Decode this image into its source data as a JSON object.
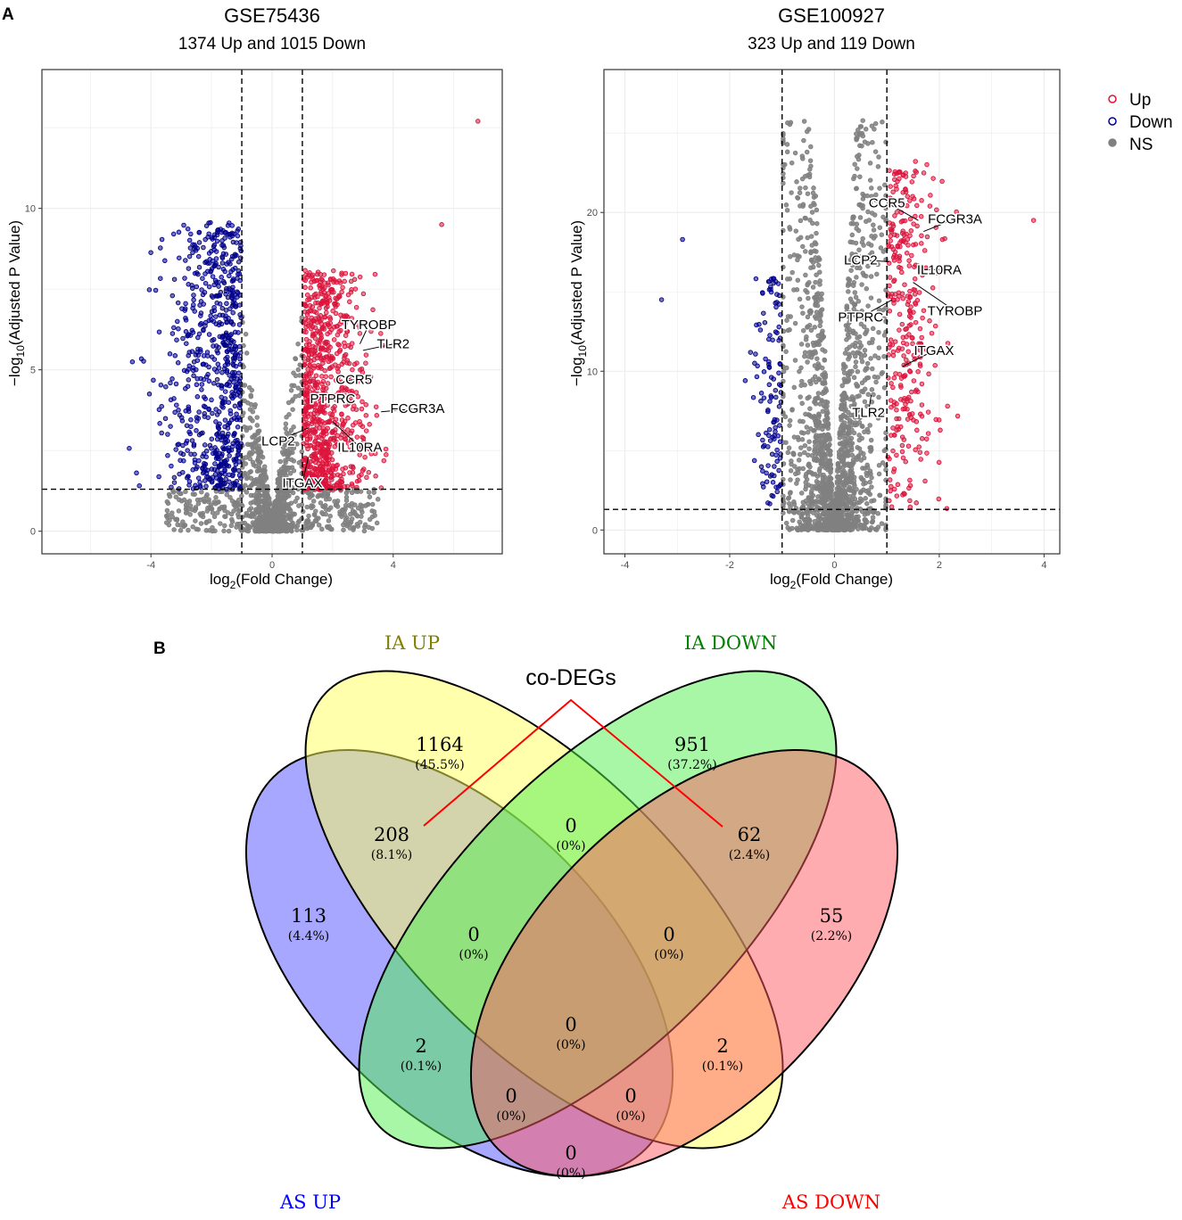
{
  "panel_a_label": "A",
  "panel_b_label": "B",
  "colors": {
    "up": "#dc143c",
    "down": "#00008b",
    "ns": "#808080",
    "grid": "#ebebeb"
  },
  "chart_data": [
    {
      "type": "scatter",
      "title": "GSE75436",
      "subtitle": "1374 Up and 1015 Down",
      "xlabel": "log2(Fold Change)",
      "ylabel": "-log10(Adjusted P Value)",
      "xlim": [
        -7.6,
        7.6
      ],
      "ylim": [
        -0.7,
        14.3
      ],
      "x_ticks": [
        -4,
        0,
        4
      ],
      "x_tick_labels": [
        "-4",
        "0",
        "4"
      ],
      "y_ticks": [
        0,
        5,
        10
      ],
      "y_tick_labels": [
        "0",
        "5",
        "10"
      ],
      "fc_cutoff": 1,
      "p_cutoff": 1.3,
      "up_count": 1374,
      "down_count": 1015,
      "labeled_genes": [
        {
          "gene": "TYROBP",
          "x": 2.9,
          "y": 5.8,
          "label_x": 3.2,
          "label_y": 6.4
        },
        {
          "gene": "TLR2",
          "x": 3.0,
          "y": 5.6,
          "label_x": 4.0,
          "label_y": 5.8
        },
        {
          "gene": "CCR5",
          "x": 2.1,
          "y": 4.6,
          "label_x": 2.7,
          "label_y": 4.7
        },
        {
          "gene": "PTPRC",
          "x": 1.8,
          "y": 4.1,
          "label_x": 2.0,
          "label_y": 4.1
        },
        {
          "gene": "FCGR3A",
          "x": 3.6,
          "y": 3.7,
          "label_x": 4.8,
          "label_y": 3.8
        },
        {
          "gene": "LCP2",
          "x": 1.2,
          "y": 3.2,
          "label_x": 0.2,
          "label_y": 2.8
        },
        {
          "gene": "IL10RA",
          "x": 2.0,
          "y": 3.4,
          "label_x": 2.9,
          "label_y": 2.6
        },
        {
          "gene": "ITGAX",
          "x": 1.2,
          "y": 2.3,
          "label_x": 1.0,
          "label_y": 1.5
        }
      ]
    },
    {
      "type": "scatter",
      "title": "GSE100927",
      "subtitle": "323 Up and 119 Down",
      "xlabel": "log2(Fold Change)",
      "ylabel": "-log10(Adjusted P Value)",
      "xlim": [
        -4.4,
        4.3
      ],
      "ylim": [
        -1.5,
        29.0
      ],
      "x_ticks": [
        -4,
        -2,
        0,
        2,
        4
      ],
      "x_tick_labels": [
        "-4",
        "-2",
        "0",
        "2",
        "4"
      ],
      "y_ticks": [
        0,
        10,
        20
      ],
      "y_tick_labels": [
        "0",
        "10",
        "20"
      ],
      "fc_cutoff": 1,
      "p_cutoff": 1.3,
      "up_count": 323,
      "down_count": 119,
      "labeled_genes": [
        {
          "gene": "CCR5",
          "x": 1.6,
          "y": 19.5,
          "label_x": 1.0,
          "label_y": 20.6
        },
        {
          "gene": "FCGR3A",
          "x": 1.7,
          "y": 18.8,
          "label_x": 2.3,
          "label_y": 19.6
        },
        {
          "gene": "LCP2",
          "x": 1.05,
          "y": 16.9,
          "label_x": 0.5,
          "label_y": 17.0
        },
        {
          "gene": "IL10RA",
          "x": 1.6,
          "y": 16.4,
          "label_x": 2.0,
          "label_y": 16.4
        },
        {
          "gene": "PTPRC",
          "x": 1.1,
          "y": 14.5,
          "label_x": 0.5,
          "label_y": 13.4
        },
        {
          "gene": "TYROBP",
          "x": 1.5,
          "y": 15.6,
          "label_x": 2.3,
          "label_y": 13.8
        },
        {
          "gene": "ITGAX",
          "x": 1.3,
          "y": 10.3,
          "label_x": 1.9,
          "label_y": 11.3
        },
        {
          "gene": "TLR2",
          "x": 0.7,
          "y": 8.5,
          "label_x": 0.65,
          "label_y": 7.4
        }
      ]
    }
  ],
  "legend": [
    {
      "label": "Up",
      "key": "up"
    },
    {
      "label": "Down",
      "key": "down"
    },
    {
      "label": "NS",
      "key": "ns"
    }
  ],
  "venn": {
    "callout": "co-DEGs",
    "sets": [
      {
        "label": "AS UP",
        "color": "#0000ff"
      },
      {
        "label": "IA UP",
        "color": "#808000"
      },
      {
        "label": "IA DOWN",
        "color": "#008000"
      },
      {
        "label": "AS DOWN",
        "color": "#ff0000"
      }
    ],
    "regions": [
      {
        "id": "ia-up-only",
        "count": "1164",
        "pct": "(45.5%)"
      },
      {
        "id": "ia-down-only",
        "count": "951",
        "pct": "(37.2%)"
      },
      {
        "id": "as-up-ia-up",
        "count": "208",
        "pct": "(8.1%)"
      },
      {
        "id": "ia-up-ia-down",
        "count": "0",
        "pct": "(0%)"
      },
      {
        "id": "as-down-ia-down",
        "count": "62",
        "pct": "(2.4%)"
      },
      {
        "id": "as-up-only",
        "count": "113",
        "pct": "(4.4%)"
      },
      {
        "id": "as-up-ia-up-ia-down",
        "count": "0",
        "pct": "(0%)"
      },
      {
        "id": "ia-up-ia-down-as-down",
        "count": "0",
        "pct": "(0%)"
      },
      {
        "id": "as-down-only",
        "count": "55",
        "pct": "(2.2%)"
      },
      {
        "id": "all-four",
        "count": "0",
        "pct": "(0%)"
      },
      {
        "id": "as-up-ia-down",
        "count": "2",
        "pct": "(0.1%)"
      },
      {
        "id": "ia-up-as-down",
        "count": "2",
        "pct": "(0.1%)"
      },
      {
        "id": "as-up-ia-down-as-down",
        "count": "0",
        "pct": "(0%)"
      },
      {
        "id": "as-up-ia-up-as-down",
        "count": "0",
        "pct": "(0%)"
      },
      {
        "id": "as-up-as-down",
        "count": "0",
        "pct": "(0%)"
      }
    ]
  }
}
